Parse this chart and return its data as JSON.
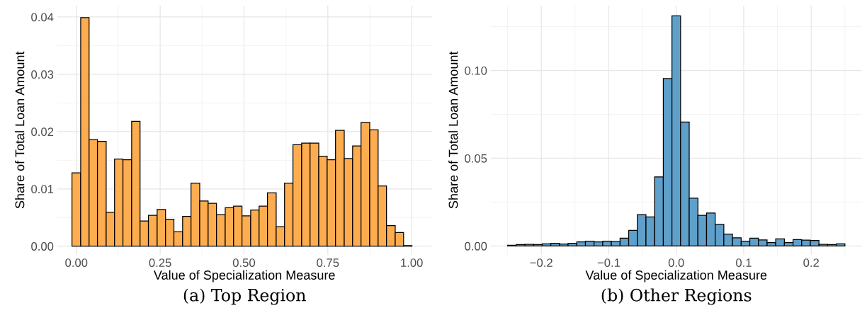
{
  "chart_data": [
    {
      "type": "histogram",
      "title": "(a) Top Region",
      "xlabel": "Value of Specialization Measure",
      "ylabel": "Share of Total Loan Amount",
      "color": "#fdad50",
      "grid": true,
      "bins": [
        -0.013,
        0.013,
        0.038,
        0.063,
        0.089,
        0.114,
        0.139,
        0.165,
        0.19,
        0.215,
        0.241,
        0.266,
        0.291,
        0.317,
        0.342,
        0.368,
        0.393,
        0.418,
        0.444,
        0.469,
        0.494,
        0.52,
        0.545,
        0.57,
        0.596,
        0.621,
        0.646,
        0.672,
        0.697,
        0.723,
        0.748,
        0.773,
        0.799,
        0.824,
        0.849,
        0.875,
        0.9,
        0.925,
        0.951,
        0.976,
        1.001
      ],
      "values": [
        0.0128,
        0.0399,
        0.0186,
        0.0183,
        0.0059,
        0.0152,
        0.0151,
        0.0218,
        0.0044,
        0.0054,
        0.0064,
        0.0047,
        0.0025,
        0.0052,
        0.011,
        0.0079,
        0.0075,
        0.0055,
        0.0067,
        0.007,
        0.0053,
        0.0063,
        0.007,
        0.0093,
        0.0034,
        0.011,
        0.0177,
        0.018,
        0.018,
        0.0157,
        0.0151,
        0.0202,
        0.0153,
        0.0175,
        0.0216,
        0.0203,
        0.0105,
        0.0036,
        0.0024,
        0.0001
      ],
      "xlim": [
        -0.057,
        1.06
      ],
      "ylim": [
        -0.0015,
        0.042
      ],
      "xticks": [
        {
          "value": 0,
          "label": "0.00"
        },
        {
          "value": 0.25,
          "label": "0.25"
        },
        {
          "value": 0.5,
          "label": "0.50"
        },
        {
          "value": 0.75,
          "label": "0.75"
        },
        {
          "value": 1,
          "label": "1.00"
        }
      ],
      "yticks": [
        {
          "value": 0,
          "label": "0.00"
        },
        {
          "value": 0.01,
          "label": "0.01"
        },
        {
          "value": 0.02,
          "label": "0.02"
        },
        {
          "value": 0.03,
          "label": "0.03"
        },
        {
          "value": 0.04,
          "label": "0.04"
        }
      ]
    },
    {
      "type": "histogram",
      "title": "(b) Other Regions",
      "xlabel": "Value of Specialization Measure",
      "ylabel": "Share of Total Loan Amount",
      "color": "#5fa0cb",
      "grid": true,
      "bins": [
        -0.25,
        -0.2372,
        -0.2244,
        -0.2115,
        -0.1987,
        -0.1859,
        -0.1731,
        -0.1603,
        -0.1474,
        -0.1346,
        -0.1218,
        -0.109,
        -0.0962,
        -0.0833,
        -0.0705,
        -0.0577,
        -0.0449,
        -0.0321,
        -0.0192,
        -0.0064,
        0.0064,
        0.0192,
        0.0321,
        0.0449,
        0.0577,
        0.0705,
        0.0833,
        0.0962,
        0.109,
        0.1218,
        0.1346,
        0.1474,
        0.1603,
        0.1731,
        0.1859,
        0.1987,
        0.2115,
        0.2244,
        0.2372,
        0.25
      ],
      "values": [
        0.0004,
        0.0008,
        0.0009,
        0.0008,
        0.0012,
        0.0015,
        0.0011,
        0.0015,
        0.0024,
        0.0028,
        0.0024,
        0.0028,
        0.0026,
        0.0045,
        0.0089,
        0.0179,
        0.0166,
        0.0394,
        0.0954,
        0.1311,
        0.0706,
        0.0273,
        0.0175,
        0.0188,
        0.0123,
        0.0068,
        0.0047,
        0.0028,
        0.0045,
        0.0035,
        0.002,
        0.0041,
        0.002,
        0.0037,
        0.0034,
        0.0032,
        0.0009,
        0.0008,
        0.0012
      ],
      "xlim": [
        -0.275,
        0.275
      ],
      "ylim": [
        -0.005,
        0.137
      ],
      "xticks": [
        {
          "value": -0.2,
          "label": "−0.2"
        },
        {
          "value": -0.1,
          "label": "−0.1"
        },
        {
          "value": 0,
          "label": "0.0"
        },
        {
          "value": 0.1,
          "label": "0.1"
        },
        {
          "value": 0.2,
          "label": "0.2"
        }
      ],
      "yticks": [
        {
          "value": 0,
          "label": "0.00"
        },
        {
          "value": 0.05,
          "label": "0.05"
        },
        {
          "value": 0.1,
          "label": "0.10"
        }
      ]
    }
  ]
}
